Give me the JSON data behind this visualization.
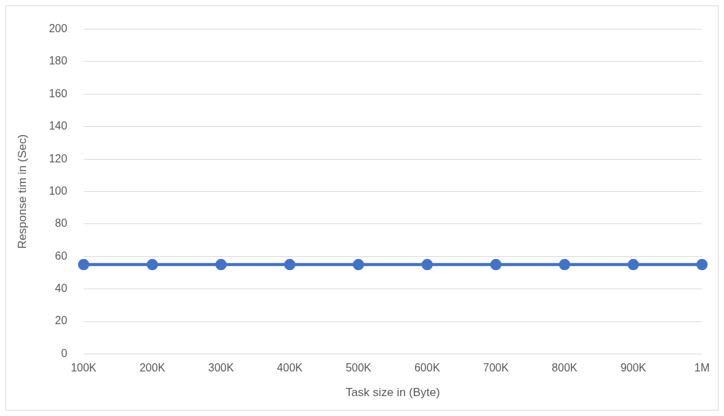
{
  "chart_data": {
    "type": "line",
    "xlabel": "Task size in (Byte)",
    "ylabel": "Response tim in (Sec)",
    "categories": [
      "100K",
      "200K",
      "300K",
      "400K",
      "500K",
      "600K",
      "700K",
      "800K",
      "900K",
      "1M"
    ],
    "series": [
      {
        "color": "#4472c4",
        "values": [
          55,
          55,
          55,
          55,
          55,
          55,
          55,
          55,
          55,
          55
        ]
      }
    ],
    "ylim": [
      0,
      200
    ],
    "yticks": [
      0,
      20,
      40,
      60,
      80,
      100,
      120,
      140,
      160,
      180,
      200
    ],
    "grid": "y",
    "marker": "circle",
    "line_style": "solid",
    "legend": false
  }
}
